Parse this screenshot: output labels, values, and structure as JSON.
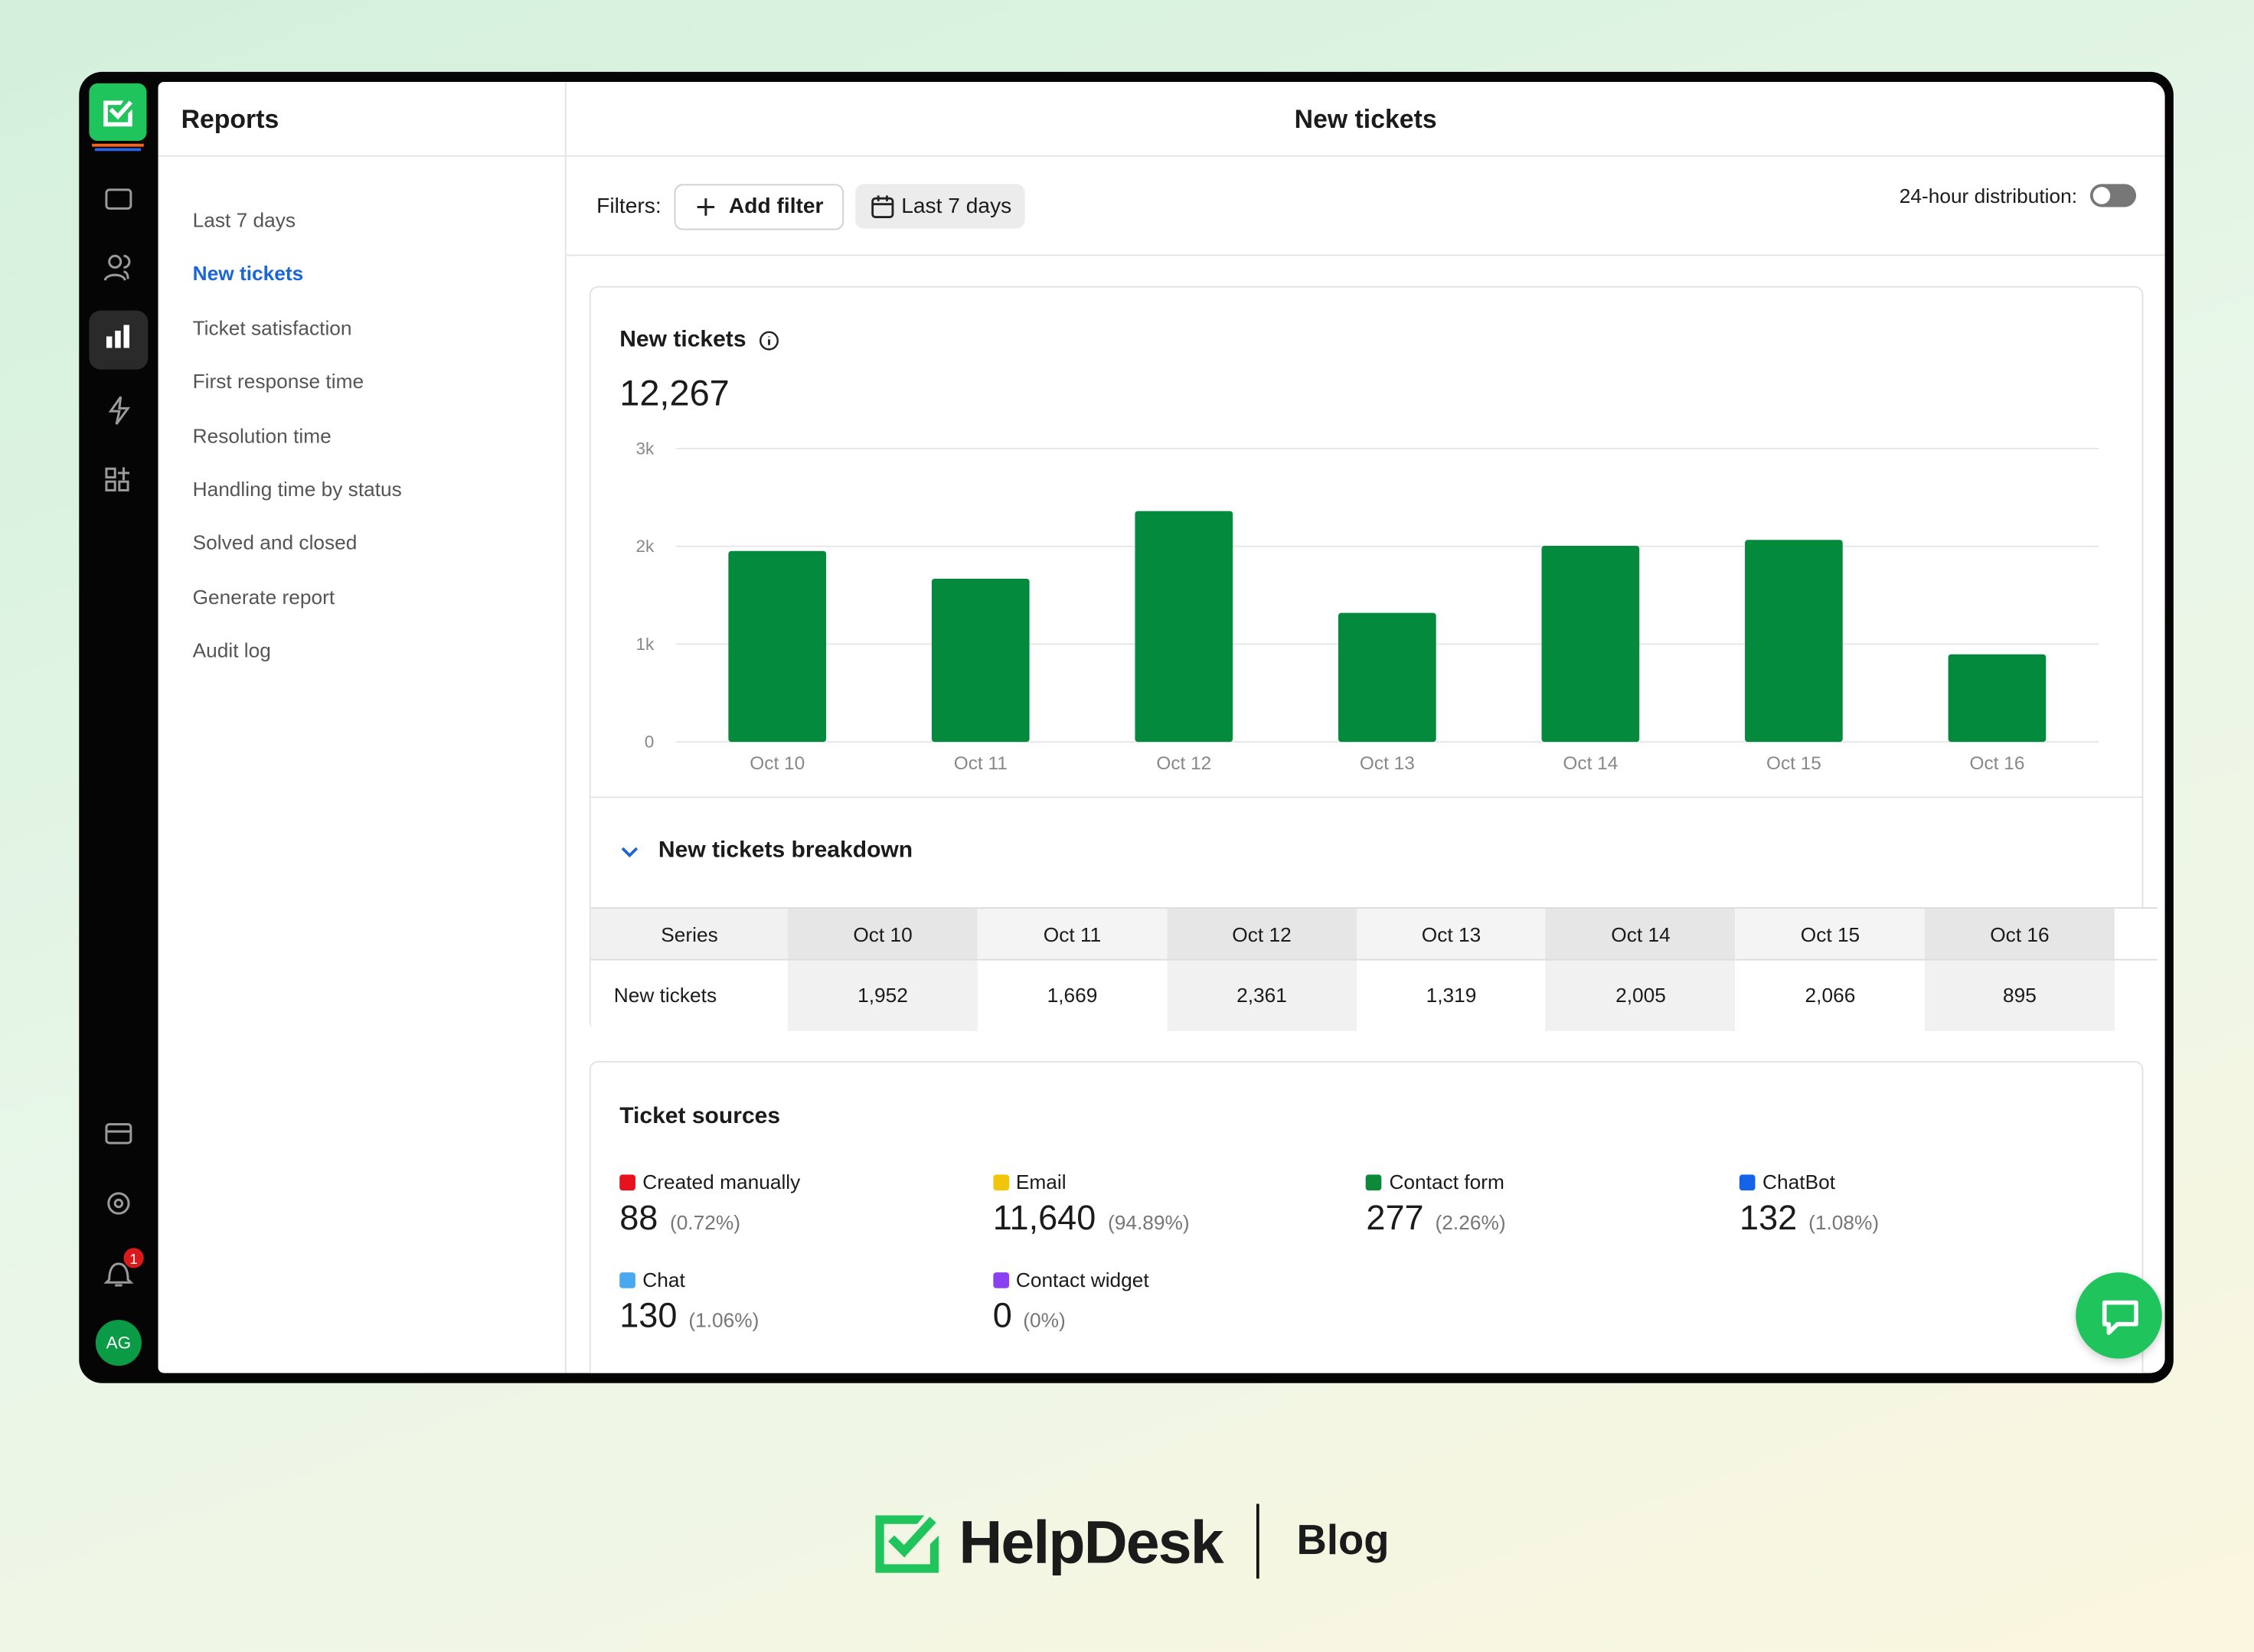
{
  "app": {
    "sidebar_title": "Reports",
    "nav": [
      "Last 7 days",
      "New tickets",
      "Ticket satisfaction",
      "First response time",
      "Resolution time",
      "Handling time by status",
      "Solved and closed",
      "Generate report",
      "Audit log"
    ],
    "notifications": 1,
    "avatar": "AG"
  },
  "header": {
    "title": "New tickets"
  },
  "filters": {
    "label": "Filters:",
    "add": "Add filter",
    "range": "Last 7 days",
    "toggle_label": "24-hour distribution:"
  },
  "summary": {
    "total": "12,267"
  },
  "chart_data": {
    "type": "bar",
    "title": "New tickets",
    "categories": [
      "Oct 10",
      "Oct 11",
      "Oct 12",
      "Oct 13",
      "Oct 14",
      "Oct 15",
      "Oct 16"
    ],
    "values": [
      1952,
      1669,
      2361,
      1319,
      2005,
      2066,
      895
    ],
    "color": "#048a3d",
    "ylim": [
      0,
      3000
    ],
    "yticks": [
      0,
      {
        "value": 1000,
        "label": "1k"
      },
      {
        "value": 2000,
        "label": "2k"
      },
      {
        "value": 3000,
        "label": "3k"
      }
    ],
    "grid": true
  },
  "breakdown": {
    "title": "New tickets breakdown",
    "columns": [
      "Series",
      "Oct 10",
      "Oct 11",
      "Oct 12",
      "Oct 13",
      "Oct 14",
      "Oct 15",
      "Oct 16"
    ],
    "rows": [
      [
        "New tickets",
        "1,952",
        "1,669",
        "2,361",
        "1,319",
        "2,005",
        "2,066",
        "895"
      ]
    ]
  },
  "sources": {
    "title": "Ticket sources",
    "items": [
      {
        "name": "Created manually",
        "color": "#e8121e",
        "value": "88",
        "share": "(0.72%)"
      },
      {
        "name": "Email",
        "color": "#f2c40c",
        "value": "11,640",
        "share": "(94.89%)"
      },
      {
        "name": "Contact form",
        "color": "#0c8a3a",
        "value": "277",
        "share": "(2.26%)"
      },
      {
        "name": "ChatBot",
        "color": "#1463e8",
        "value": "132",
        "share": "(1.08%)"
      },
      {
        "name": "Chat",
        "color": "#4aa8f0",
        "value": "130",
        "share": "(1.06%)"
      },
      {
        "name": "Contact widget",
        "color": "#8a3ff0",
        "value": "0",
        "share": "(0%)"
      }
    ]
  },
  "brand": {
    "name": "HelpDesk",
    "section": "Blog"
  }
}
